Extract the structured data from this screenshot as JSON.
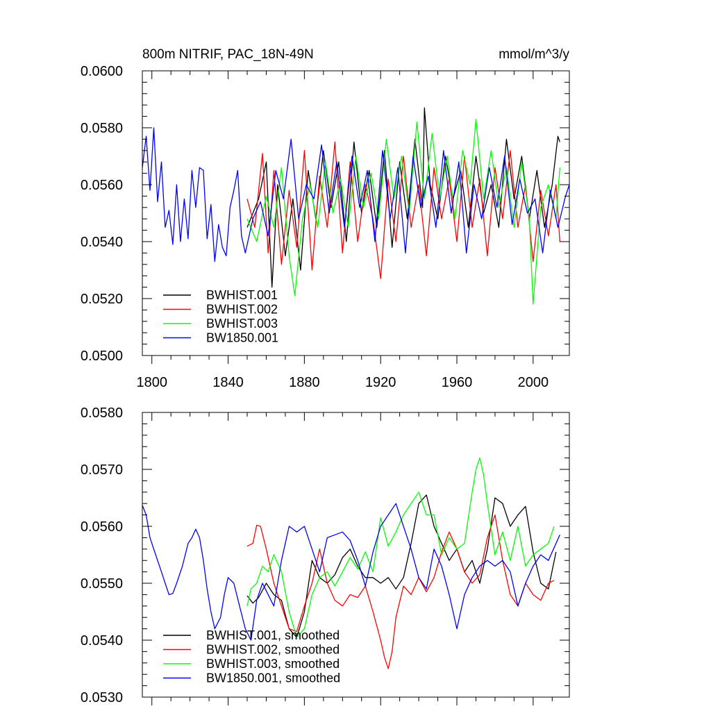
{
  "chart_data": [
    {
      "type": "line",
      "title": "800m NITRIF, PAC_18N-49N",
      "units": "mmol/m^3/y",
      "xlabel": "",
      "ylabel": "",
      "xlim": [
        1795,
        2019
      ],
      "ylim": [
        0.05,
        0.06
      ],
      "x_ticks": [
        1800,
        1840,
        1880,
        1920,
        1960,
        2000
      ],
      "x_tick_labels": [
        "1800",
        "1840",
        "1880",
        "1920",
        "1960",
        "2000"
      ],
      "y_ticks": [
        0.05,
        0.052,
        0.054,
        0.056,
        0.058,
        0.06
      ],
      "y_tick_labels": [
        "0.0500",
        "0.0520",
        "0.0540",
        "0.0560",
        "0.0580",
        "0.0600"
      ],
      "grid": false,
      "legend_position": "bottom-left",
      "series": [
        {
          "name": "BWHIST.001",
          "color": "#000000",
          "x": [
            1850,
            1856,
            1860,
            1863,
            1866,
            1870,
            1874,
            1878,
            1882,
            1886,
            1890,
            1894,
            1898,
            1902,
            1906,
            1910,
            1914,
            1918,
            1922,
            1926,
            1930,
            1934,
            1938,
            1942,
            1943,
            1946,
            1950,
            1954,
            1958,
            1962,
            1966,
            1970,
            1974,
            1978,
            1982,
            1986,
            1990,
            1994,
            1998,
            2002,
            2006,
            2010,
            2013,
            2014
          ],
          "values": [
            0.0545,
            0.0555,
            0.0568,
            0.0524,
            0.056,
            0.0535,
            0.0555,
            0.053,
            0.0565,
            0.0548,
            0.0572,
            0.0552,
            0.0568,
            0.054,
            0.0575,
            0.055,
            0.0565,
            0.0545,
            0.0572,
            0.0538,
            0.0568,
            0.0548,
            0.0576,
            0.0552,
            0.0587,
            0.056,
            0.0548,
            0.057,
            0.0555,
            0.0565,
            0.0545,
            0.057,
            0.055,
            0.056,
            0.0545,
            0.0576,
            0.0555,
            0.057,
            0.0548,
            0.0565,
            0.0545,
            0.056,
            0.0577,
            0.0575
          ]
        },
        {
          "name": "BWHIST.002",
          "color": "#ff0000",
          "x": [
            1850,
            1854,
            1858,
            1861,
            1864,
            1868,
            1872,
            1876,
            1880,
            1884,
            1888,
            1892,
            1896,
            1900,
            1904,
            1908,
            1912,
            1916,
            1920,
            1924,
            1928,
            1932,
            1936,
            1940,
            1944,
            1948,
            1952,
            1956,
            1960,
            1964,
            1968,
            1972,
            1976,
            1980,
            1984,
            1988,
            1992,
            1996,
            2000,
            2004,
            2008,
            2012,
            2014
          ],
          "values": [
            0.0555,
            0.0545,
            0.0571,
            0.0536,
            0.0565,
            0.0532,
            0.0558,
            0.0538,
            0.0572,
            0.053,
            0.0563,
            0.0545,
            0.0575,
            0.0536,
            0.0568,
            0.054,
            0.056,
            0.0548,
            0.0527,
            0.0562,
            0.054,
            0.057,
            0.0545,
            0.056,
            0.0535,
            0.0566,
            0.0548,
            0.0562,
            0.054,
            0.057,
            0.0545,
            0.0562,
            0.0535,
            0.0566,
            0.0548,
            0.0572,
            0.0545,
            0.056,
            0.0533,
            0.0558,
            0.0542,
            0.056,
            0.054
          ]
        },
        {
          "name": "BWHIST.003",
          "color": "#00ff00",
          "x": [
            1850,
            1855,
            1860,
            1864,
            1868,
            1872,
            1875,
            1879,
            1883,
            1887,
            1891,
            1895,
            1899,
            1903,
            1907,
            1911,
            1915,
            1919,
            1923,
            1927,
            1931,
            1935,
            1939,
            1943,
            1947,
            1951,
            1955,
            1959,
            1963,
            1967,
            1970,
            1974,
            1978,
            1982,
            1986,
            1990,
            1994,
            1998,
            2000,
            2004,
            2008,
            2012,
            2014
          ],
          "values": [
            0.0548,
            0.054,
            0.0556,
            0.0545,
            0.0566,
            0.0535,
            0.0521,
            0.0548,
            0.056,
            0.0545,
            0.0568,
            0.055,
            0.0562,
            0.0545,
            0.057,
            0.0552,
            0.0564,
            0.0548,
            0.0576,
            0.0555,
            0.057,
            0.055,
            0.0582,
            0.0555,
            0.0578,
            0.0555,
            0.057,
            0.0548,
            0.0572,
            0.056,
            0.0583,
            0.0555,
            0.0572,
            0.0552,
            0.0566,
            0.0545,
            0.0568,
            0.0548,
            0.0518,
            0.0552,
            0.056,
            0.0548,
            0.0566
          ]
        },
        {
          "name": "BW1850.001",
          "color": "#0000ff",
          "x": [
            1795,
            1797,
            1799,
            1801,
            1803,
            1805,
            1807,
            1809,
            1811,
            1813,
            1815,
            1817,
            1819,
            1821,
            1823,
            1825,
            1827,
            1829,
            1831,
            1833,
            1835,
            1837,
            1839,
            1841,
            1843,
            1845,
            1847,
            1849,
            1853,
            1857,
            1861,
            1865,
            1869,
            1873,
            1877,
            1881,
            1885,
            1889,
            1893,
            1897,
            1901,
            1905,
            1909,
            1913,
            1917,
            1921,
            1925,
            1929,
            1933,
            1937,
            1941,
            1945,
            1949,
            1953,
            1957,
            1961,
            1965,
            1969,
            1973,
            1977,
            1981,
            1985,
            1989,
            1993,
            1997,
            2001,
            2005,
            2009,
            2013,
            2017,
            2019
          ],
          "values": [
            0.0566,
            0.0577,
            0.0558,
            0.058,
            0.0554,
            0.0568,
            0.0545,
            0.0551,
            0.0539,
            0.056,
            0.054,
            0.0555,
            0.0541,
            0.0565,
            0.0552,
            0.0566,
            0.0565,
            0.0541,
            0.0553,
            0.0533,
            0.0546,
            0.0538,
            0.0535,
            0.0552,
            0.0558,
            0.0565,
            0.0542,
            0.0536,
            0.0548,
            0.0554,
            0.0542,
            0.0565,
            0.0555,
            0.0576,
            0.0548,
            0.056,
            0.0555,
            0.0574,
            0.055,
            0.0568,
            0.0545,
            0.057,
            0.0552,
            0.0565,
            0.054,
            0.0572,
            0.0548,
            0.0566,
            0.0536,
            0.057,
            0.0552,
            0.0563,
            0.0545,
            0.0572,
            0.055,
            0.0568,
            0.0536,
            0.056,
            0.0548,
            0.0566,
            0.0552,
            0.057,
            0.0546,
            0.0562,
            0.055,
            0.0555,
            0.0536,
            0.0558,
            0.0545,
            0.0556,
            0.056
          ]
        }
      ]
    },
    {
      "type": "line",
      "title": "",
      "xlabel": "",
      "ylabel": "",
      "xlim": [
        1795,
        2019
      ],
      "ylim": [
        0.053,
        0.058
      ],
      "x_ticks": [
        1800,
        1840,
        1880,
        1920,
        1960,
        2000
      ],
      "y_ticks": [
        0.053,
        0.054,
        0.055,
        0.056,
        0.057,
        0.058
      ],
      "y_tick_labels": [
        "0.0530",
        "0.0540",
        "0.0550",
        "0.0560",
        "0.0570",
        "0.0580"
      ],
      "grid": false,
      "legend_position": "bottom-left",
      "series": [
        {
          "name": "BWHIST.001, smoothed",
          "color": "#000000",
          "x": [
            1850,
            1853,
            1856,
            1860,
            1864,
            1868,
            1872,
            1876,
            1880,
            1884,
            1888,
            1892,
            1896,
            1900,
            1904,
            1908,
            1912,
            1916,
            1920,
            1924,
            1928,
            1932,
            1936,
            1940,
            1944,
            1948,
            1952,
            1956,
            1960,
            1964,
            1968,
            1972,
            1976,
            1980,
            1984,
            1988,
            1992,
            1996,
            2000,
            2004,
            2008,
            2012
          ],
          "values": [
            0.05478,
            0.05465,
            0.05475,
            0.055,
            0.0548,
            0.0547,
            0.0542,
            0.05405,
            0.0545,
            0.0554,
            0.0551,
            0.055,
            0.05515,
            0.05545,
            0.0556,
            0.0553,
            0.0551,
            0.0551,
            0.055,
            0.0551,
            0.0549,
            0.0551,
            0.0557,
            0.0564,
            0.05655,
            0.056,
            0.0557,
            0.0554,
            0.0556,
            0.0552,
            0.0554,
            0.055,
            0.0556,
            0.0565,
            0.0564,
            0.056,
            0.0562,
            0.05635,
            0.05555,
            0.055,
            0.0549,
            0.05555
          ]
        },
        {
          "name": "BWHIST.002, smoothed",
          "color": "#ff0000",
          "x": [
            1850,
            1853,
            1855,
            1857,
            1860,
            1864,
            1868,
            1872,
            1876,
            1880,
            1884,
            1888,
            1892,
            1896,
            1900,
            1904,
            1908,
            1912,
            1916,
            1920,
            1922,
            1924,
            1926,
            1928,
            1932,
            1936,
            1940,
            1944,
            1948,
            1952,
            1956,
            1960,
            1964,
            1968,
            1972,
            1976,
            1980,
            1984,
            1988,
            1992,
            1996,
            2000,
            2004,
            2008,
            2011
          ],
          "values": [
            0.05565,
            0.0557,
            0.05602,
            0.056,
            0.0556,
            0.055,
            0.0546,
            0.0542,
            0.05415,
            0.0546,
            0.055,
            0.0556,
            0.055,
            0.0547,
            0.0546,
            0.0548,
            0.05475,
            0.05495,
            0.0545,
            0.054,
            0.0537,
            0.0535,
            0.0538,
            0.0544,
            0.05495,
            0.0548,
            0.0551,
            0.05485,
            0.0551,
            0.05555,
            0.0559,
            0.0556,
            0.0552,
            0.055,
            0.05515,
            0.0558,
            0.0562,
            0.0554,
            0.0548,
            0.0546,
            0.055,
            0.0548,
            0.0547,
            0.055,
            0.05505
          ]
        },
        {
          "name": "BWHIST.003, smoothed",
          "color": "#00ff00",
          "x": [
            1850,
            1852,
            1855,
            1858,
            1861,
            1864,
            1868,
            1872,
            1876,
            1880,
            1884,
            1888,
            1892,
            1896,
            1900,
            1904,
            1908,
            1912,
            1916,
            1920,
            1924,
            1928,
            1932,
            1936,
            1940,
            1944,
            1948,
            1952,
            1956,
            1960,
            1964,
            1968,
            1970,
            1972,
            1974,
            1976,
            1980,
            1984,
            1988,
            1992,
            1996,
            2000,
            2004,
            2008,
            2011
          ],
          "values": [
            0.0546,
            0.0549,
            0.055,
            0.0553,
            0.0552,
            0.0555,
            0.0552,
            0.0545,
            0.05405,
            0.0542,
            0.0548,
            0.0551,
            0.0552,
            0.05495,
            0.0552,
            0.05545,
            0.05525,
            0.05555,
            0.0552,
            0.05615,
            0.05565,
            0.0559,
            0.0562,
            0.0564,
            0.0566,
            0.0562,
            0.0562,
            0.0555,
            0.0558,
            0.0556,
            0.0557,
            0.0566,
            0.057,
            0.0572,
            0.0569,
            0.0564,
            0.0555,
            0.0559,
            0.0554,
            0.056,
            0.0553,
            0.0555,
            0.0556,
            0.0557,
            0.056
          ]
        },
        {
          "name": "BW1850.001, smoothed",
          "color": "#0000ff",
          "x": [
            1795,
            1797,
            1799,
            1802,
            1805,
            1807,
            1809,
            1811,
            1813,
            1816,
            1819,
            1821,
            1823,
            1825,
            1827,
            1829,
            1831,
            1833,
            1836,
            1838,
            1840,
            1843,
            1846,
            1849,
            1852,
            1855,
            1858,
            1861,
            1864,
            1868,
            1872,
            1876,
            1880,
            1884,
            1888,
            1892,
            1896,
            1900,
            1904,
            1908,
            1912,
            1916,
            1920,
            1924,
            1928,
            1932,
            1936,
            1940,
            1944,
            1948,
            1952,
            1956,
            1960,
            1964,
            1968,
            1972,
            1976,
            1980,
            1984,
            1988,
            1992,
            1996,
            2000,
            2004,
            2008,
            2012,
            2014
          ],
          "values": [
            0.05637,
            0.0562,
            0.0558,
            0.0555,
            0.0552,
            0.055,
            0.0548,
            0.05482,
            0.055,
            0.0553,
            0.0557,
            0.0558,
            0.05595,
            0.0558,
            0.0554,
            0.0549,
            0.0545,
            0.0542,
            0.0544,
            0.0548,
            0.0551,
            0.055,
            0.0546,
            0.0542,
            0.054,
            0.0547,
            0.055,
            0.0548,
            0.0546,
            0.0554,
            0.056,
            0.0559,
            0.056,
            0.0556,
            0.0552,
            0.0558,
            0.05585,
            0.0559,
            0.05575,
            0.0554,
            0.05495,
            0.05555,
            0.056,
            0.0562,
            0.0564,
            0.056,
            0.0556,
            0.0551,
            0.0549,
            0.0556,
            0.0553,
            0.0548,
            0.0542,
            0.0548,
            0.0551,
            0.0553,
            0.0554,
            0.0553,
            0.0554,
            0.0552,
            0.0546,
            0.055,
            0.0553,
            0.0555,
            0.0554,
            0.0557,
            0.05585
          ]
        }
      ]
    }
  ]
}
